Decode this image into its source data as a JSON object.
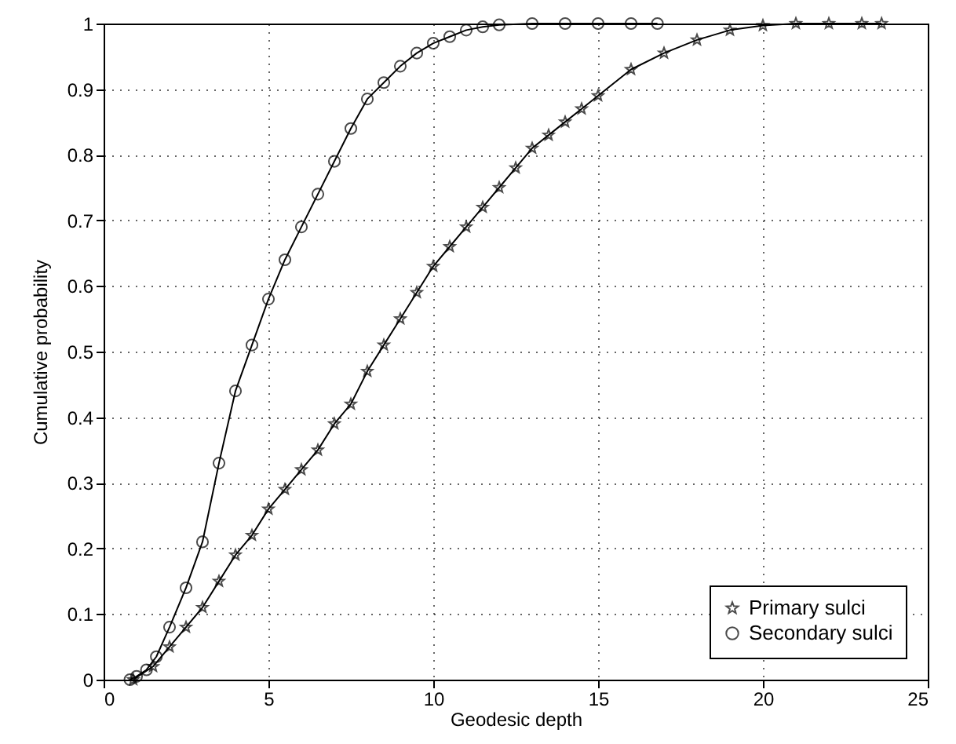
{
  "chart_data": {
    "type": "line",
    "xlabel": "Geodesic depth",
    "ylabel": "Cumulative probability",
    "xlim": [
      0,
      25
    ],
    "ylim": [
      0,
      1
    ],
    "xticks": [
      0,
      5,
      10,
      15,
      20,
      25
    ],
    "yticks": [
      0,
      0.1,
      0.2,
      0.3,
      0.4,
      0.5,
      0.6,
      0.7,
      0.8,
      0.9,
      1
    ],
    "grid": true,
    "legend": "bottom right",
    "line_style": "solid",
    "series": [
      {
        "name": "Primary sulci",
        "color": "#000000",
        "marker": "star",
        "x": [
          0.9,
          1.5,
          2,
          2.5,
          3,
          3.5,
          4,
          4.5,
          5,
          5.5,
          6,
          6.5,
          7,
          7.5,
          8,
          8.5,
          9,
          9.5,
          10,
          10.5,
          11,
          11.5,
          12,
          12.5,
          13,
          13.5,
          14,
          14.5,
          15,
          16,
          17,
          18,
          19,
          20,
          21,
          22,
          23,
          23.6
        ],
        "values": [
          0,
          0.02,
          0.05,
          0.08,
          0.11,
          0.15,
          0.19,
          0.22,
          0.26,
          0.29,
          0.32,
          0.35,
          0.39,
          0.42,
          0.47,
          0.51,
          0.55,
          0.59,
          0.63,
          0.66,
          0.69,
          0.72,
          0.75,
          0.78,
          0.81,
          0.83,
          0.85,
          0.87,
          0.89,
          0.93,
          0.955,
          0.975,
          0.99,
          0.997,
          1,
          1,
          1,
          1
        ]
      },
      {
        "name": "Secondary sulci",
        "color": "#000000",
        "marker": "circle",
        "x": [
          0.8,
          1,
          1.3,
          1.6,
          2,
          2.5,
          3,
          3.5,
          4,
          4.5,
          5,
          5.5,
          6,
          6.5,
          7,
          7.5,
          8,
          8.5,
          9,
          9.5,
          10,
          10.5,
          11,
          11.5,
          12,
          13,
          14,
          15,
          16,
          16.8
        ],
        "values": [
          0,
          0.005,
          0.015,
          0.035,
          0.08,
          0.14,
          0.21,
          0.33,
          0.44,
          0.51,
          0.58,
          0.64,
          0.69,
          0.74,
          0.79,
          0.84,
          0.885,
          0.91,
          0.935,
          0.955,
          0.97,
          0.98,
          0.99,
          0.995,
          0.998,
          1,
          1,
          1,
          1,
          1
        ]
      }
    ]
  }
}
